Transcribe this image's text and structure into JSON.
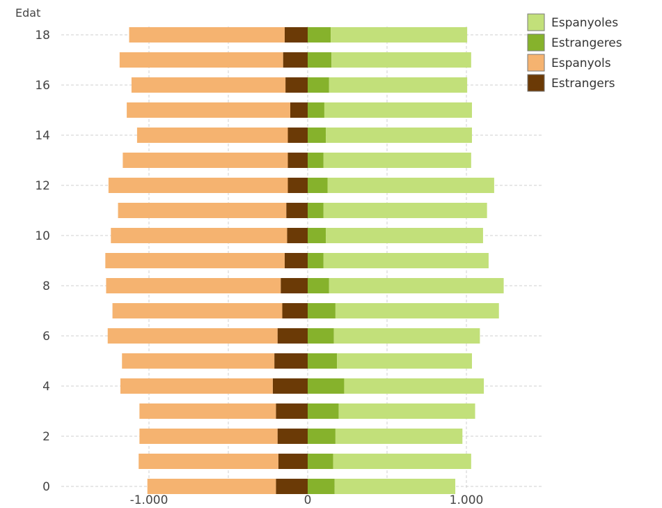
{
  "chart_data": {
    "type": "bar",
    "orientation": "horizontal",
    "stacked": true,
    "ylabel": "Edat",
    "categories": [
      0,
      1,
      2,
      3,
      4,
      5,
      6,
      7,
      8,
      9,
      10,
      11,
      12,
      13,
      14,
      15,
      16,
      17,
      18
    ],
    "y_tick_labels": [
      "0",
      "2",
      "4",
      "6",
      "8",
      "10",
      "12",
      "14",
      "16",
      "18"
    ],
    "x_tick_labels": [
      "-1.000",
      "0",
      "1.000"
    ],
    "xlim": [
      -1550,
      1500
    ],
    "ylim": [
      0,
      18
    ],
    "grid": true,
    "legend_position": "top-right",
    "series": [
      {
        "name": "Espanyoles",
        "color": "#c2e07a",
        "side": "right",
        "stack_order": 2,
        "values": [
          760,
          870,
          800,
          860,
          880,
          850,
          920,
          1030,
          1100,
          1040,
          990,
          1030,
          1050,
          930,
          920,
          930,
          870,
          880,
          860
        ]
      },
      {
        "name": "Estrangeres",
        "color": "#86b22c",
        "side": "right",
        "stack_order": 1,
        "values": [
          170,
          160,
          175,
          195,
          230,
          185,
          165,
          175,
          135,
          100,
          115,
          100,
          125,
          100,
          115,
          105,
          135,
          150,
          145
        ]
      },
      {
        "name": "Espanyols",
        "color": "#f5b370",
        "side": "left",
        "stack_order": 2,
        "values": [
          -810,
          -880,
          -870,
          -860,
          -960,
          -960,
          -1070,
          -1070,
          -1100,
          -1130,
          -1110,
          -1060,
          -1130,
          -1040,
          -950,
          -1030,
          -970,
          -1030,
          -980
        ]
      },
      {
        "name": "Estrangers",
        "color": "#6b3a06",
        "side": "left",
        "stack_order": 1,
        "values": [
          -200,
          -185,
          -190,
          -200,
          -220,
          -210,
          -190,
          -160,
          -170,
          -145,
          -130,
          -135,
          -125,
          -125,
          -125,
          -110,
          -140,
          -155,
          -145
        ]
      }
    ]
  }
}
